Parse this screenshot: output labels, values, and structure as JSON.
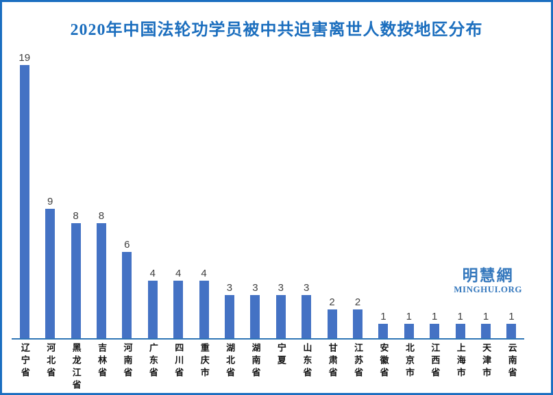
{
  "chart_data": {
    "type": "bar",
    "title": "2020年中国法轮功学员被中共迫害离世人数按地区分布",
    "categories": [
      "辽宁省",
      "河北省",
      "黑龙江省",
      "吉林省",
      "河南省",
      "广东省",
      "四川省",
      "重庆市",
      "湖北省",
      "湖南省",
      "宁夏",
      "山东省",
      "甘肃省",
      "江苏省",
      "安徽省",
      "北京市",
      "江西省",
      "上海市",
      "天津市",
      "云南省"
    ],
    "values": [
      19,
      9,
      8,
      8,
      6,
      4,
      4,
      4,
      3,
      3,
      3,
      3,
      2,
      2,
      1,
      1,
      1,
      1,
      1,
      1
    ],
    "xlabel": "",
    "ylabel": "",
    "ylim": [
      0,
      20
    ],
    "grid": false,
    "legend": false,
    "data_labels": true,
    "bar_color": "#4472c4",
    "axis_line_color": "#2e75b6",
    "value_label_color": "#404040",
    "category_label_color": "#141414"
  },
  "frame": {
    "border_color": "#1b6ec0",
    "background_color": "#ffffff",
    "title_color": "#1b6ebe"
  },
  "watermark": {
    "cjk": "明慧網",
    "latin": "MINGHUI.ORG",
    "color": "#3578bd"
  }
}
